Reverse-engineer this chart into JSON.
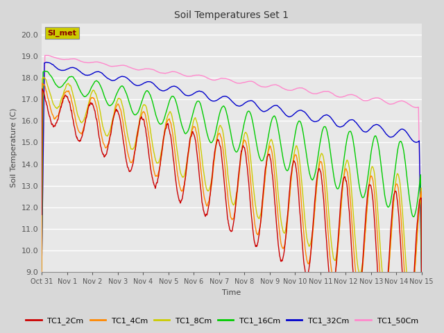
{
  "title": "Soil Temperatures Set 1",
  "xlabel": "Time",
  "ylabel": "Soil Temperature (C)",
  "ylim": [
    9.0,
    20.5
  ],
  "yticks": [
    9.0,
    10.0,
    11.0,
    12.0,
    13.0,
    14.0,
    15.0,
    16.0,
    17.0,
    18.0,
    19.0,
    20.0
  ],
  "background_color": "#d8d8d8",
  "plot_bg_color": "#e8e8e8",
  "grid_color": "#ffffff",
  "series_colors": {
    "TC1_2Cm": "#cc0000",
    "TC1_4Cm": "#ff8800",
    "TC1_8Cm": "#cccc00",
    "TC1_16Cm": "#00cc00",
    "TC1_32Cm": "#0000cc",
    "TC1_50Cm": "#ff88cc"
  },
  "legend_label": "SI_met",
  "legend_box_color": "#cccc00",
  "legend_text_color": "#880000",
  "xtick_labels": [
    "Oct 31",
    "Nov 1",
    "Nov 2",
    "Nov 3",
    "Nov 4",
    "Nov 5",
    "Nov 6",
    "Nov 7",
    "Nov 8",
    "Nov 9",
    "Nov 10",
    "Nov 11",
    "Nov 12",
    "Nov 13",
    "Nov 14",
    "Nov 15"
  ]
}
